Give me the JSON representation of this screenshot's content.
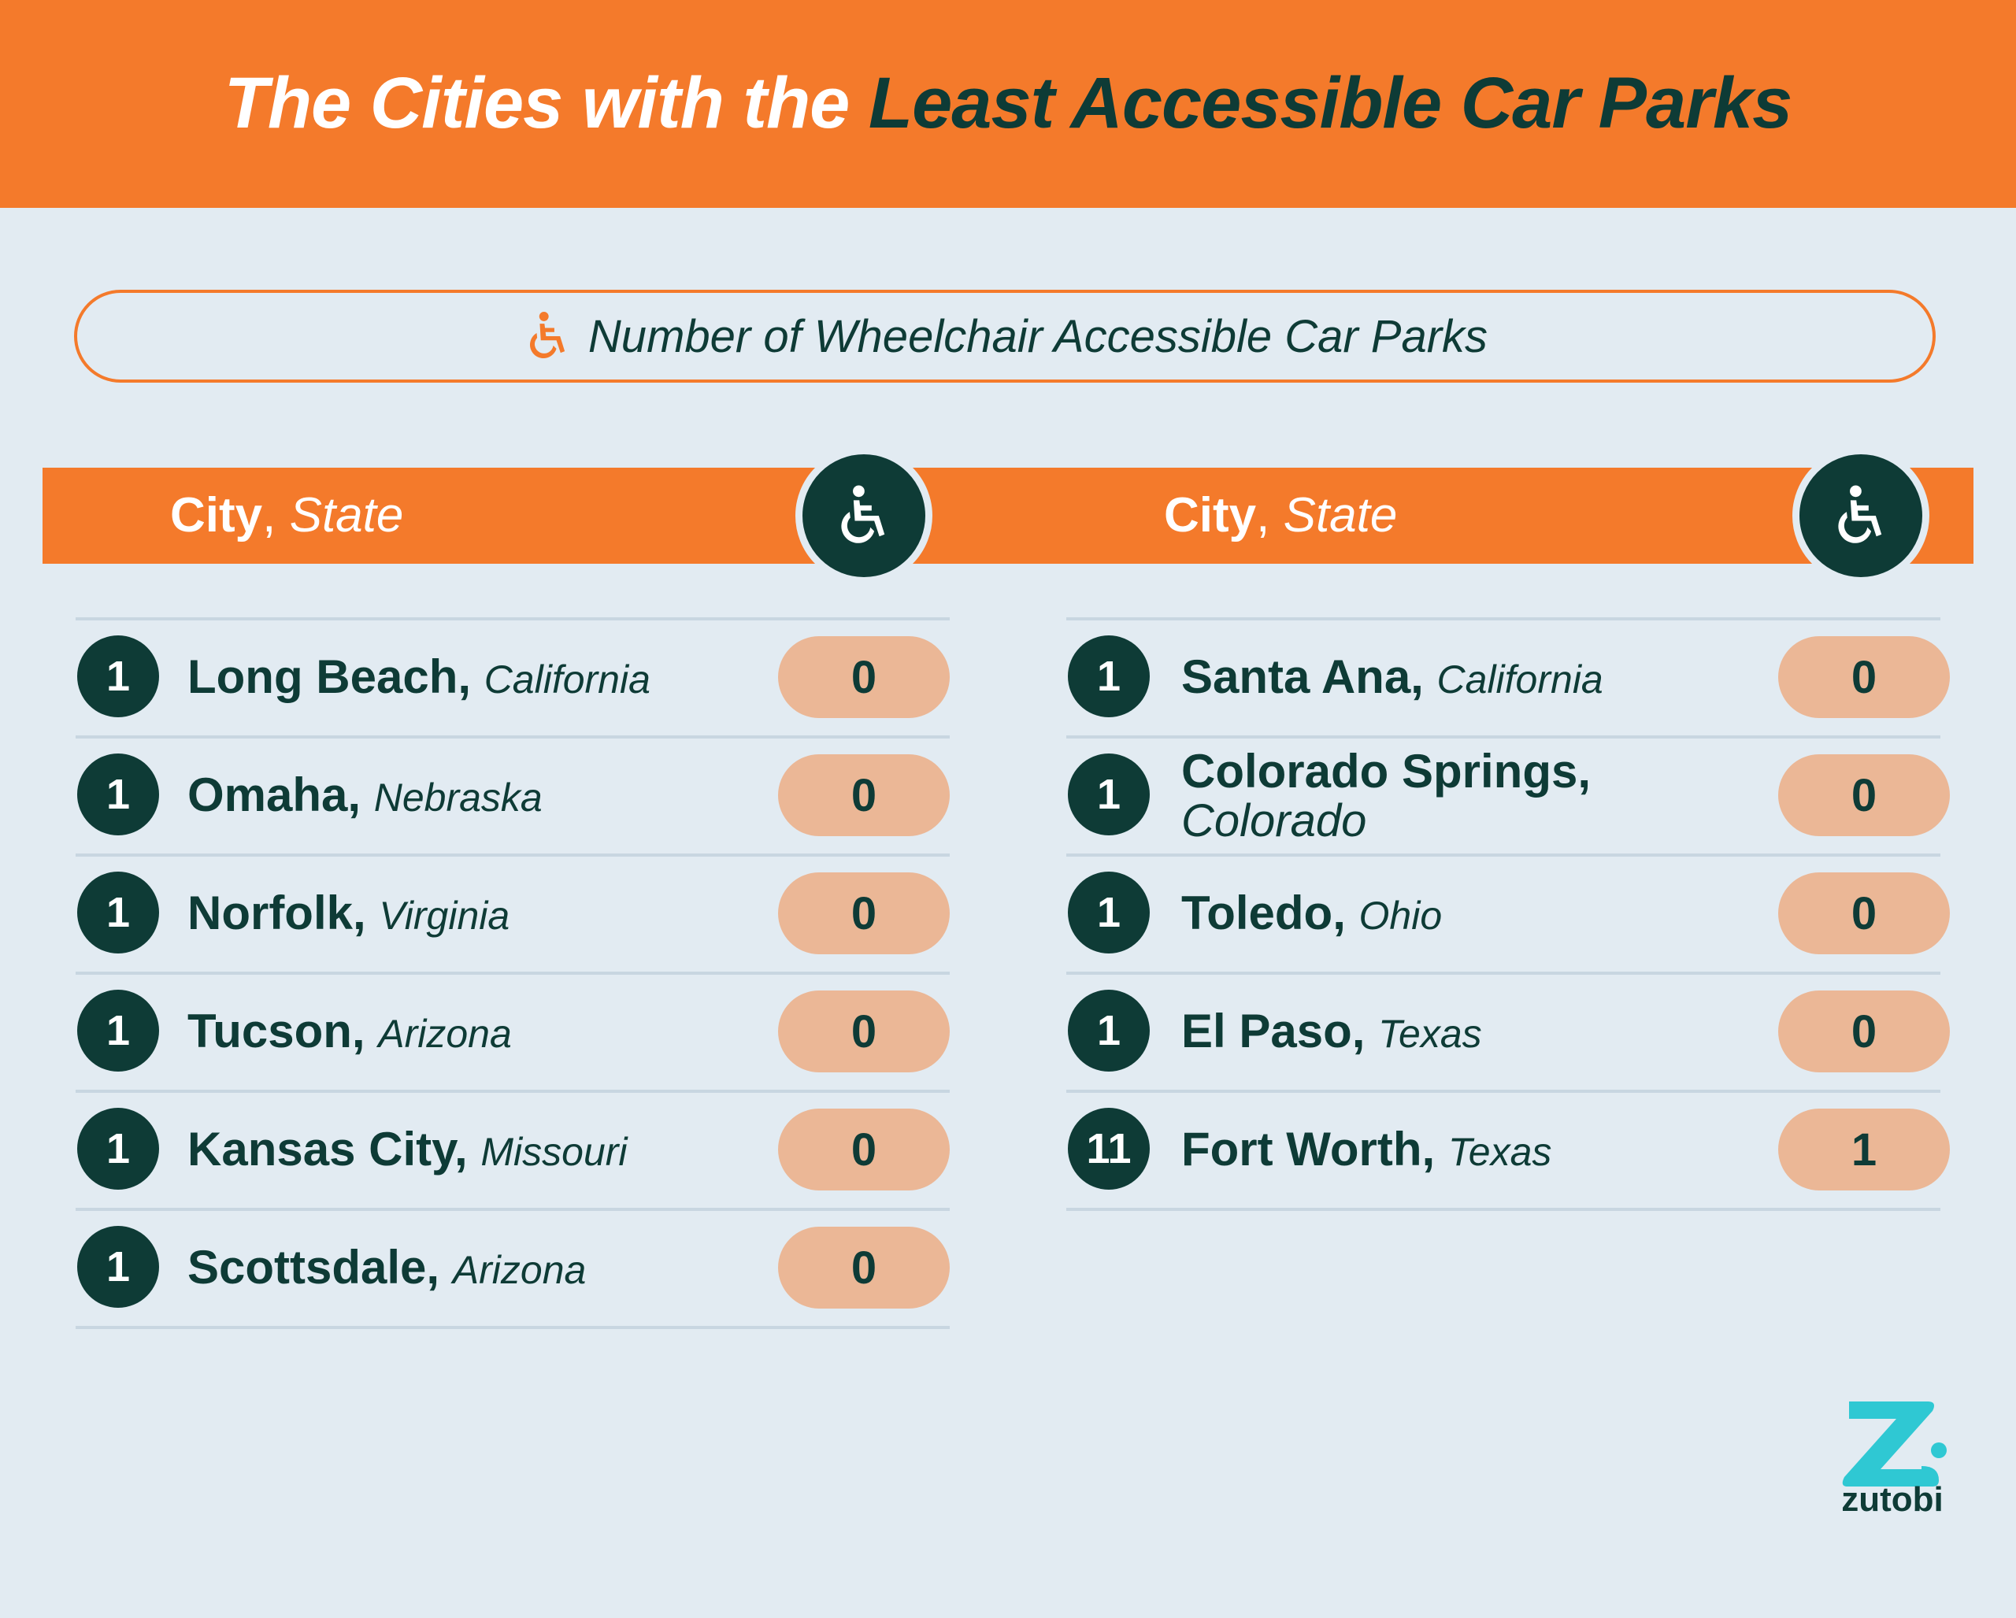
{
  "title": {
    "part1": "The Cities with the ",
    "part2": "Least Accessible Car Parks"
  },
  "legend": {
    "label": "Number of Wheelchair Accessible Car Parks",
    "icon": "wheelchair-icon"
  },
  "columns": [
    {
      "city_label": "City",
      "state_label": "State",
      "icon": "wheelchair-icon"
    },
    {
      "city_label": "City",
      "state_label": "State",
      "icon": "wheelchair-icon"
    }
  ],
  "left": [
    {
      "rank": "1",
      "city": "Long Beach,",
      "state": "California",
      "value": "0"
    },
    {
      "rank": "1",
      "city": "Omaha,",
      "state": "Nebraska",
      "value": "0"
    },
    {
      "rank": "1",
      "city": "Norfolk,",
      "state": "Virginia",
      "value": "0"
    },
    {
      "rank": "1",
      "city": "Tucson,",
      "state": "Arizona",
      "value": "0"
    },
    {
      "rank": "1",
      "city": "Kansas City,",
      "state": "Missouri",
      "value": "0"
    },
    {
      "rank": "1",
      "city": "Scottsdale,",
      "state": "Arizona",
      "value": "0"
    }
  ],
  "right": [
    {
      "rank": "1",
      "city": "Santa Ana,",
      "state": "California",
      "value": "0"
    },
    {
      "rank": "1",
      "city": "Colorado Springs,",
      "state": "Colorado",
      "value": "0"
    },
    {
      "rank": "1",
      "city": "Toledo,",
      "state": "Ohio",
      "value": "0"
    },
    {
      "rank": "1",
      "city": "El Paso,",
      "state": "Texas",
      "value": "0"
    },
    {
      "rank": "11",
      "city": "Fort Worth,",
      "state": "Texas",
      "value": "1"
    }
  ],
  "brand": {
    "name": "zutobi",
    "logo_color": "#2fc8d3"
  },
  "colors": {
    "orange": "#f47a2b",
    "dark": "#0e3b36",
    "pill": "#ebb796",
    "background": "#e2ebf2"
  }
}
